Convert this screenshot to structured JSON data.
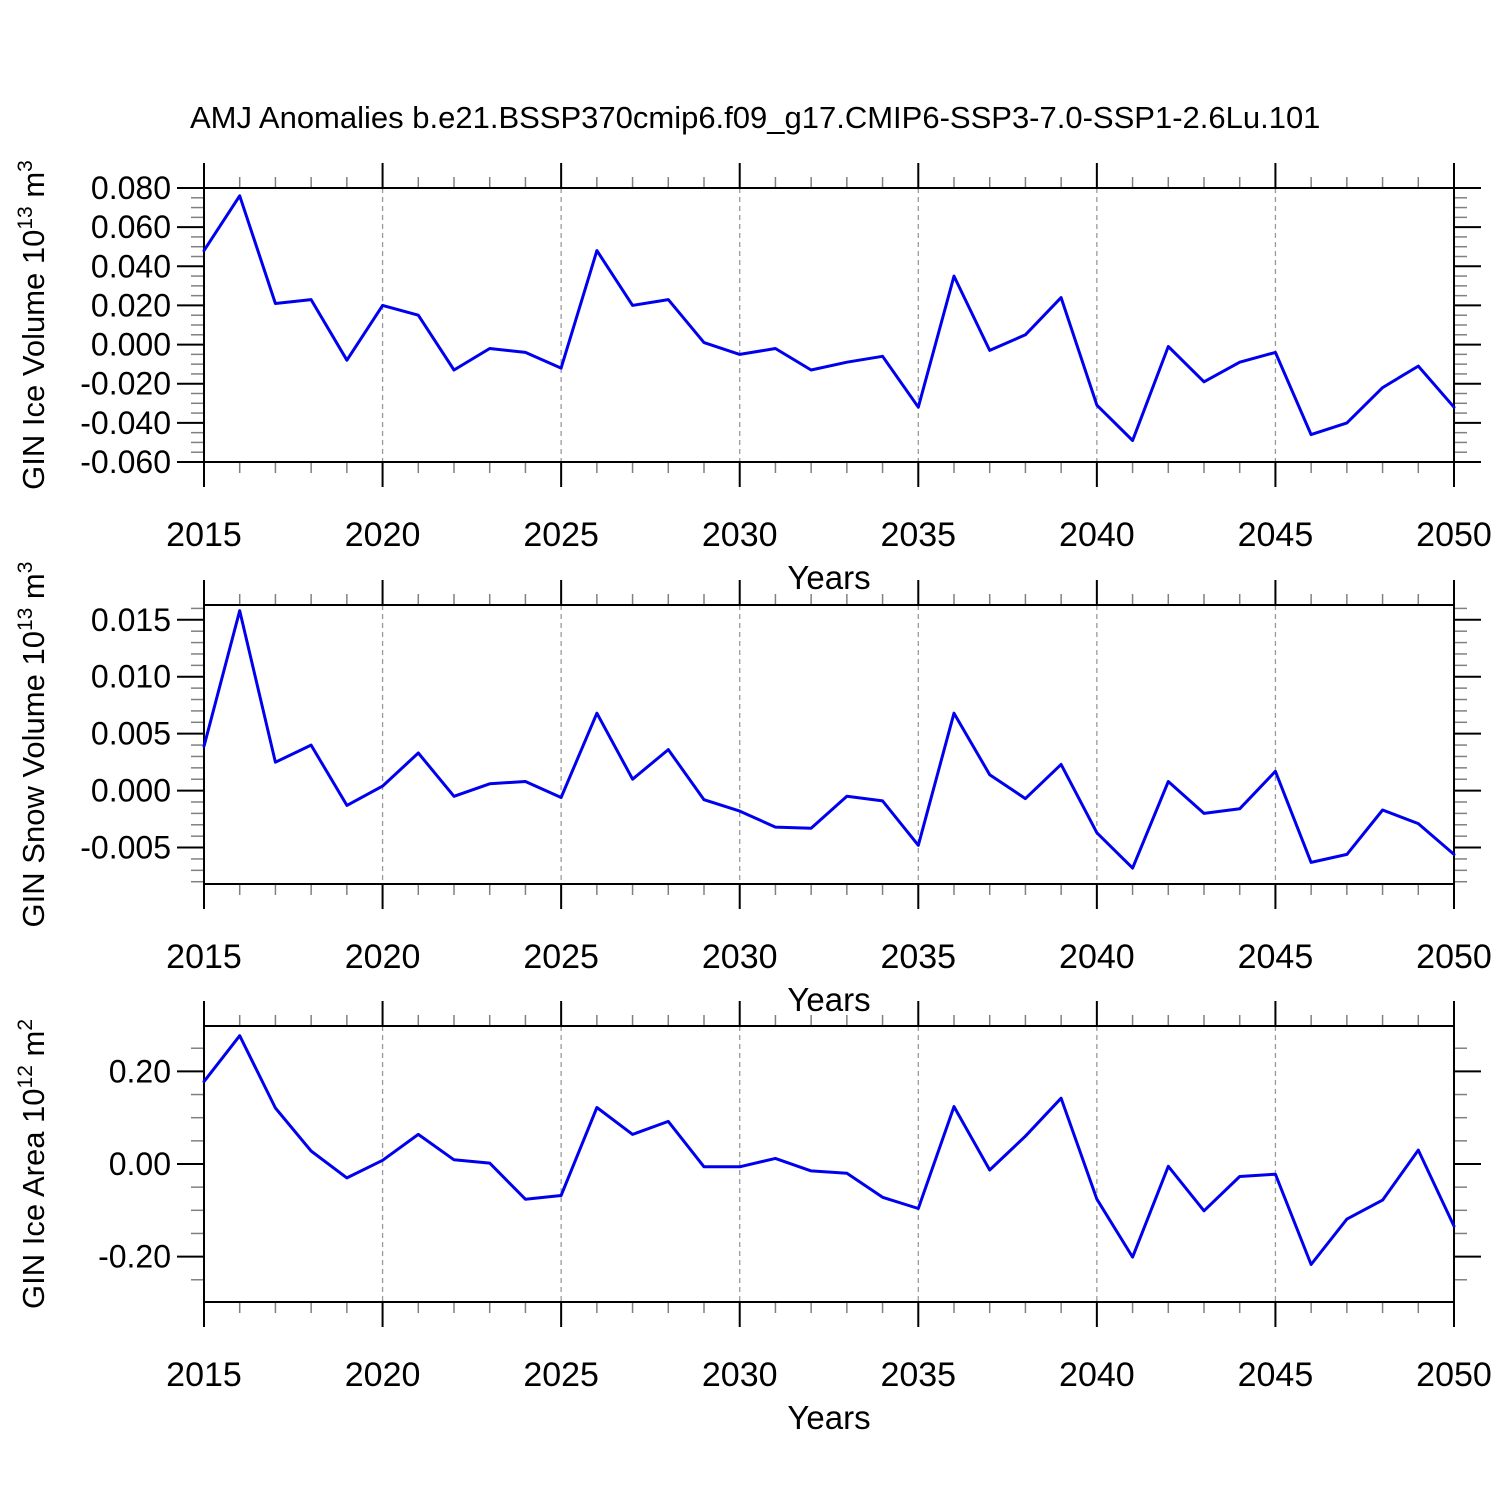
{
  "title": "AMJ Anomalies b.e21.BSSP370cmip6.f09_g17.CMIP6-SSP3-7.0-SSP1-2.6Lu.101",
  "xlabel": "Years",
  "colors": {
    "line": "#0000EE",
    "axis": "#000000",
    "minor_tick": "#808080",
    "grid": "#999999"
  },
  "chart_data": [
    {
      "type": "line",
      "ylabel": "GIN Ice Volume 10^13 m^3",
      "ylabel_parts": [
        {
          "t": "GIN Ice Volume 10"
        },
        {
          "t": "13",
          "sup": true
        },
        {
          "t": " m"
        },
        {
          "t": "3",
          "sup": true
        }
      ],
      "xlabel": "Years",
      "x": [
        2015,
        2016,
        2017,
        2018,
        2019,
        2020,
        2021,
        2022,
        2023,
        2024,
        2025,
        2026,
        2027,
        2028,
        2029,
        2030,
        2031,
        2032,
        2033,
        2034,
        2035,
        2036,
        2037,
        2038,
        2039,
        2040,
        2041,
        2042,
        2043,
        2044,
        2045,
        2046,
        2047,
        2048,
        2049,
        2050
      ],
      "values": [
        0.048,
        0.076,
        0.021,
        0.023,
        -0.008,
        0.02,
        0.015,
        -0.013,
        -0.002,
        -0.004,
        -0.012,
        0.048,
        0.02,
        0.023,
        0.001,
        -0.005,
        -0.002,
        -0.013,
        -0.009,
        -0.006,
        -0.032,
        0.035,
        -0.003,
        0.005,
        0.024,
        -0.031,
        -0.049,
        -0.001,
        -0.019,
        -0.009,
        -0.004,
        -0.046,
        -0.04,
        -0.022,
        -0.011,
        -0.032
      ],
      "xlim": [
        2015,
        2050
      ],
      "ylim": [
        -0.06,
        0.08
      ],
      "yticks_major": [
        0.08,
        0.06,
        0.04,
        0.02,
        0.0,
        -0.02,
        -0.04,
        -0.06
      ],
      "ytick_labels": [
        "0.080",
        "0.060",
        "0.040",
        "0.020",
        "0.000",
        "-0.020",
        "-0.040",
        "-0.060"
      ],
      "y_minor_step": 0.005,
      "xticks_labeled": [
        2015,
        2020,
        2025,
        2030,
        2035,
        2040,
        2045,
        2050
      ],
      "xtick_labels": [
        "2015",
        "2020",
        "2025",
        "2030",
        "2035",
        "2040",
        "2045",
        "2050"
      ],
      "x_minor_step": 1,
      "grid_years": [
        2020,
        2025,
        2030,
        2035,
        2040,
        2045
      ],
      "grid": "vertical-dashed",
      "legend": "none"
    },
    {
      "type": "line",
      "ylabel": "GIN Snow Volume 10^13 m^3",
      "ylabel_parts": [
        {
          "t": "GIN Snow Volume 10"
        },
        {
          "t": "13",
          "sup": true
        },
        {
          "t": " m"
        },
        {
          "t": "3",
          "sup": true
        }
      ],
      "xlabel": "Years",
      "x": [
        2015,
        2016,
        2017,
        2018,
        2019,
        2020,
        2021,
        2022,
        2023,
        2024,
        2025,
        2026,
        2027,
        2028,
        2029,
        2030,
        2031,
        2032,
        2033,
        2034,
        2035,
        2036,
        2037,
        2038,
        2039,
        2040,
        2041,
        2042,
        2043,
        2044,
        2045,
        2046,
        2047,
        2048,
        2049,
        2050
      ],
      "values": [
        0.0039,
        0.0158,
        0.0025,
        0.004,
        -0.0013,
        0.0004,
        0.0033,
        -0.0005,
        0.0006,
        0.0008,
        -0.0006,
        0.0068,
        0.001,
        0.0036,
        -0.0008,
        -0.0018,
        -0.0032,
        -0.0033,
        -0.0005,
        -0.0009,
        -0.0048,
        0.0068,
        0.0014,
        -0.0007,
        0.0023,
        -0.0037,
        -0.0068,
        0.0008,
        -0.002,
        -0.0016,
        0.0017,
        -0.0063,
        -0.0056,
        -0.0017,
        -0.0029,
        -0.0056
      ],
      "xlim": [
        2015,
        2050
      ],
      "ylim": [
        -0.0082,
        0.0163
      ],
      "yticks_major": [
        0.015,
        0.01,
        0.005,
        0.0,
        -0.005
      ],
      "ytick_labels": [
        "0.015",
        "0.010",
        "0.005",
        "0.000",
        "-0.005"
      ],
      "y_minor_step": 0.001,
      "xticks_labeled": [
        2015,
        2020,
        2025,
        2030,
        2035,
        2040,
        2045,
        2050
      ],
      "xtick_labels": [
        "2015",
        "2020",
        "2025",
        "2030",
        "2035",
        "2040",
        "2045",
        "2050"
      ],
      "x_minor_step": 1,
      "grid_years": [
        2020,
        2025,
        2030,
        2035,
        2040,
        2045
      ],
      "grid": "vertical-dashed",
      "legend": "none"
    },
    {
      "type": "line",
      "ylabel": "GIN Ice Area 10^12 m^2",
      "ylabel_parts": [
        {
          "t": "GIN Ice Area 10"
        },
        {
          "t": "12",
          "sup": true
        },
        {
          "t": " m"
        },
        {
          "t": "2",
          "sup": true
        }
      ],
      "xlabel": "Years",
      "x": [
        2015,
        2016,
        2017,
        2018,
        2019,
        2020,
        2021,
        2022,
        2023,
        2024,
        2025,
        2026,
        2027,
        2028,
        2029,
        2030,
        2031,
        2032,
        2033,
        2034,
        2035,
        2036,
        2037,
        2038,
        2039,
        2040,
        2041,
        2042,
        2043,
        2044,
        2045,
        2046,
        2047,
        2048,
        2049,
        2050
      ],
      "values": [
        0.178,
        0.277,
        0.121,
        0.028,
        -0.03,
        0.008,
        0.064,
        0.009,
        0.002,
        -0.076,
        -0.068,
        0.122,
        0.064,
        0.092,
        -0.006,
        -0.006,
        0.012,
        -0.015,
        -0.02,
        -0.072,
        -0.096,
        0.124,
        -0.013,
        0.06,
        0.142,
        -0.076,
        -0.201,
        -0.005,
        -0.101,
        -0.027,
        -0.022,
        -0.217,
        -0.119,
        -0.078,
        0.03,
        -0.134
      ],
      "xlim": [
        2015,
        2050
      ],
      "ylim": [
        -0.298,
        0.298
      ],
      "yticks_major": [
        0.2,
        0.0,
        -0.2
      ],
      "ytick_labels": [
        "0.20",
        "0.00",
        "-0.20"
      ],
      "y_minor_step": 0.05,
      "xticks_labeled": [
        2015,
        2020,
        2025,
        2030,
        2035,
        2040,
        2045,
        2050
      ],
      "xtick_labels": [
        "2015",
        "2020",
        "2025",
        "2030",
        "2035",
        "2040",
        "2045",
        "2050"
      ],
      "x_minor_step": 1,
      "grid_years": [
        2020,
        2025,
        2030,
        2035,
        2040,
        2045
      ],
      "grid": "vertical-dashed",
      "legend": "none"
    }
  ]
}
